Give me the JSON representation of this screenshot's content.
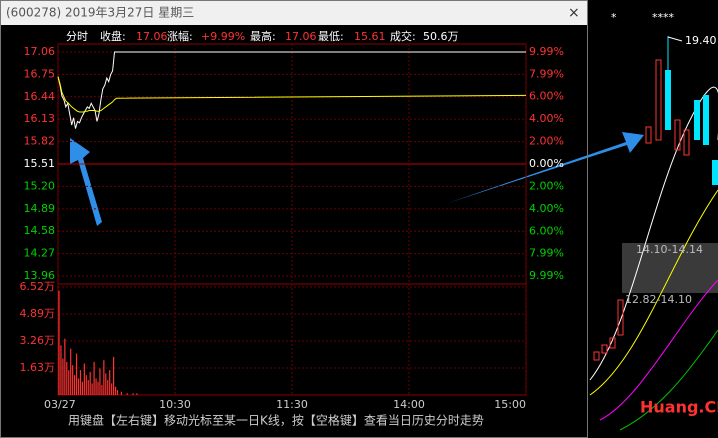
{
  "window": {
    "title": "(600278) 2019年3月27日 星期三",
    "close": "×"
  },
  "header": {
    "mode": "分时",
    "items": [
      {
        "label": "收盘:",
        "value": "17.06"
      },
      {
        "label": "涨幅:",
        "value": "+9.99%"
      },
      {
        "label": "最高:",
        "value": "17.06"
      },
      {
        "label": "最低:",
        "value": "15.61"
      },
      {
        "label": "成交:",
        "value": "50.6万"
      }
    ]
  },
  "chart_data": [
    {
      "type": "line",
      "x": [
        0,
        1,
        2,
        3,
        4,
        5,
        6,
        7,
        8,
        9,
        10,
        11,
        12,
        13,
        14,
        15,
        16,
        17,
        18,
        19,
        20,
        21,
        22,
        23,
        24,
        25,
        26,
        27,
        28,
        29,
        30,
        240
      ],
      "xlim": [
        0,
        240
      ],
      "ylim": [
        13.96,
        17.06
      ],
      "yticks": [
        17.06,
        16.75,
        16.44,
        16.13,
        15.82,
        15.51,
        {
          "value": 15.2,
          "label": "15.20"
        },
        14.89,
        14.58,
        14.27,
        13.96
      ],
      "y2lim": [
        -9.99,
        9.99
      ],
      "y2ticks": [
        {
          "value": 9.99,
          "label": "9.99%"
        },
        {
          "value": 7.99,
          "label": "7.99%"
        },
        {
          "value": 6,
          "label": "6.00%"
        },
        {
          "value": 4,
          "label": "4.00%"
        },
        {
          "value": 2,
          "label": "2.00%"
        },
        {
          "value": 0,
          "label": "0.00%"
        },
        {
          "value": -2,
          "label": "2.00%"
        },
        {
          "value": -4,
          "label": "4.00%"
        },
        {
          "value": -6,
          "label": "6.00%"
        },
        {
          "value": -7.99,
          "label": "7.99%"
        },
        {
          "value": -9.99,
          "label": "9.99%"
        }
      ],
      "up_color": "#ff3232",
      "down_color": "#00d000",
      "flat_color": "#ffffff",
      "grid": true,
      "series": [
        {
          "color": "#ffffff",
          "values": [
            16.72,
            16.6,
            16.45,
            16.4,
            16.3,
            16.35,
            16.2,
            16.05,
            16.15,
            16.0,
            16.1,
            16.08,
            16.15,
            16.2,
            16.25,
            16.3,
            16.28,
            16.35,
            16.3,
            16.25,
            16.1,
            16.2,
            16.4,
            16.55,
            16.6,
            16.7,
            16.65,
            16.75,
            16.8,
            17.06,
            17.06,
            17.06
          ]
        },
        {
          "color": "#ffff00",
          "values": [
            16.72,
            16.62,
            16.5,
            16.44,
            16.38,
            16.36,
            16.33,
            16.3,
            16.28,
            16.26,
            16.24,
            16.23,
            16.23,
            16.23,
            16.24,
            16.24,
            16.25,
            16.25,
            16.25,
            16.25,
            16.24,
            16.24,
            16.25,
            16.27,
            16.29,
            16.31,
            16.33,
            16.35,
            16.37,
            16.4,
            16.42,
            16.46
          ]
        }
      ]
    },
    {
      "type": "bar",
      "x": [
        0,
        1,
        2,
        3,
        4,
        5,
        6,
        7,
        8,
        9,
        10,
        11,
        12,
        13,
        14,
        15,
        16,
        17,
        18,
        19,
        20,
        21,
        22,
        23,
        24,
        25,
        26,
        27,
        28,
        29,
        30,
        32,
        35,
        38,
        40
      ],
      "values": [
        6.3,
        3.0,
        2.2,
        3.4,
        2.0,
        1.5,
        2.8,
        1.8,
        1.2,
        2.5,
        1.0,
        1.5,
        0.8,
        1.9,
        1.2,
        0.9,
        1.4,
        0.7,
        2.0,
        1.0,
        0.8,
        1.6,
        0.6,
        2.1,
        1.3,
        0.9,
        1.5,
        0.7,
        2.3,
        0.5,
        0.3,
        0.2,
        0.1,
        0.1,
        0.1
      ],
      "xlim": [
        0,
        240
      ],
      "ylim": [
        0,
        6.52
      ],
      "yticks": [
        {
          "value": 6.52,
          "label": "6.52万"
        },
        {
          "value": 4.89,
          "label": "4.89万"
        },
        {
          "value": 3.26,
          "label": "3.26万"
        },
        {
          "value": 1.63,
          "label": "1.63万"
        }
      ],
      "xticks": [
        {
          "value": 0,
          "label": "03/27"
        },
        {
          "value": 60,
          "label": "10:30"
        },
        {
          "value": 120,
          "label": "11:30"
        },
        {
          "value": 180,
          "label": "14:00"
        },
        {
          "value": 240,
          "label": "15:00"
        }
      ],
      "color": "#ff3232",
      "grid": true
    }
  ],
  "footer": "用键盘【左右键】移动光标至某一日K线，按【空格键】查看当日历史分时走势",
  "side": {
    "marks": [
      "*",
      "****"
    ],
    "high": "19.40",
    "zones": [
      "14.10-14.14",
      "12.82-14.10"
    ]
  },
  "watermark": "Huang.CN"
}
